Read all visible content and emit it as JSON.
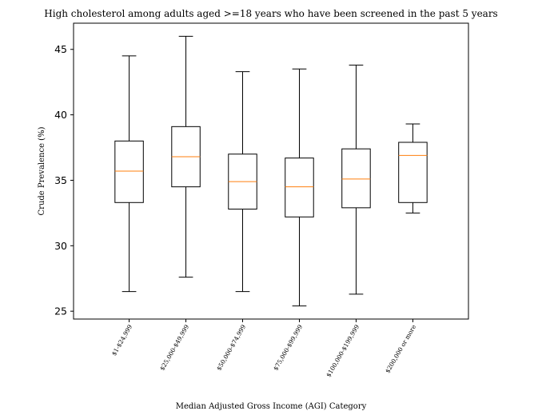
{
  "chart_data": {
    "type": "boxplot",
    "title": "High cholesterol among adults aged >=18 years who have been screened in the past 5 years",
    "xlabel": "Median Adjusted Gross Income (AGI) Category",
    "ylabel": "Crude Prevalence (%)",
    "ylim": [
      24.4,
      47.0
    ],
    "yticks": [
      25,
      30,
      35,
      40,
      45
    ],
    "grid": false,
    "categories": [
      "$1-$24,999",
      "$25,000-$49,999",
      "$50,000-$74,999",
      "$75,000-$99,999",
      "$100,000-$199,999",
      "$200,000 or more"
    ],
    "boxes": [
      {
        "whisker_low": 26.5,
        "q1": 33.3,
        "median": 35.7,
        "q3": 38.0,
        "whisker_high": 44.5
      },
      {
        "whisker_low": 27.6,
        "q1": 34.5,
        "median": 36.8,
        "q3": 39.1,
        "whisker_high": 46.0
      },
      {
        "whisker_low": 26.5,
        "q1": 32.8,
        "median": 34.9,
        "q3": 37.0,
        "whisker_high": 43.3
      },
      {
        "whisker_low": 25.4,
        "q1": 32.2,
        "median": 34.5,
        "q3": 36.7,
        "whisker_high": 43.5
      },
      {
        "whisker_low": 26.3,
        "q1": 32.9,
        "median": 35.1,
        "q3": 37.4,
        "whisker_high": 43.8
      },
      {
        "whisker_low": 32.5,
        "q1": 33.3,
        "median": 36.9,
        "q3": 37.9,
        "whisker_high": 39.3
      }
    ],
    "colors": {
      "box": "#000000",
      "median": "#ff7f0e",
      "axes": "#000000",
      "background": "#ffffff"
    }
  }
}
